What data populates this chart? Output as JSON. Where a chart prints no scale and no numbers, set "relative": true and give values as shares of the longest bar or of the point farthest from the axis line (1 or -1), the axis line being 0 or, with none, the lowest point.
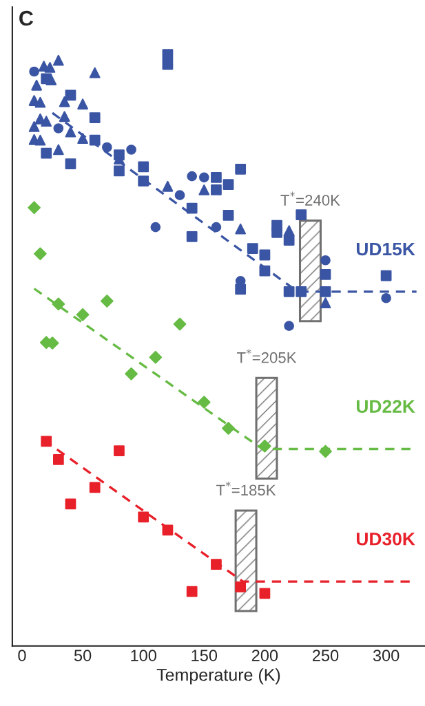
{
  "chart_data": {
    "type": "scatter",
    "relative": true,
    "xlabel": "Temperature (K)",
    "annotations": [
      "C"
    ],
    "xlim": [
      -8,
      332
    ],
    "xticks": [
      0,
      50,
      100,
      150,
      200,
      250,
      300
    ],
    "tick_labels": "x",
    "series": [
      {
        "type": "line",
        "name": "UD15K",
        "color": "#3a55a4",
        "line_style": "dashed",
        "x": [
          25,
          227,
          325
        ],
        "values": [
          0.901,
          0.599,
          0.599
        ]
      },
      {
        "color": "#3a55a4",
        "marker": "circle",
        "x": [
          10,
          30,
          70,
          90,
          110,
          130,
          140,
          150,
          160,
          180,
          220,
          250,
          300
        ],
        "values": [
          0.971,
          0.875,
          0.843,
          0.839,
          0.708,
          0.762,
          0.794,
          0.792,
          0.708,
          0.617,
          0.541,
          0.652,
          0.588
        ]
      },
      {
        "color": "#3a55a4",
        "marker": "triangle",
        "x": [
          10,
          10,
          15,
          15,
          18,
          23,
          30,
          35,
          40,
          50,
          60,
          80,
          120,
          150,
          180,
          220
        ],
        "values": [
          0.922,
          0.878,
          0.919,
          0.855,
          0.98,
          0.978,
          0.99,
          0.92,
          0.869,
          0.916,
          0.969,
          0.823,
          0.777,
          0.771,
          0.705,
          0.702
        ]
      },
      {
        "color": "#3a55a4",
        "marker": "triangle",
        "x": [
          10,
          12,
          15,
          20,
          24,
          30,
          35,
          50,
          250
        ],
        "values": [
          0.856,
          0.948,
          0.891,
          0.887,
          0.957,
          0.839,
          0.895,
          0.858,
          0.58
        ]
      },
      {
        "color": "#3a55a4",
        "marker": "square",
        "x": [
          20,
          40,
          60,
          80,
          100,
          120,
          140,
          160,
          170,
          180,
          190,
          200,
          210,
          220,
          230,
          250
        ],
        "values": [
          0.833,
          0.931,
          0.893,
          0.83,
          0.786,
          1.0,
          0.74,
          0.792,
          0.78,
          0.806,
          0.672,
          0.661,
          0.699,
          0.686,
          0.729,
          0.628
        ]
      },
      {
        "color": "#3a55a4",
        "marker": "square",
        "x": [
          20,
          40,
          60,
          80,
          100,
          120,
          140,
          160,
          170,
          180,
          200,
          210,
          220,
          230,
          250,
          300
        ],
        "values": [
          0.959,
          0.815,
          0.855,
          0.803,
          0.81,
          0.983,
          0.692,
          0.771,
          0.728,
          0.603,
          0.634,
          0.711,
          0.599,
          0.599,
          0.599,
          0.626
        ]
      },
      {
        "type": "line",
        "name": "UD22K",
        "color": "#66bb44",
        "line_style": "dashed",
        "x": [
          10,
          198,
          320
        ],
        "values": [
          0.604,
          0.333,
          0.333
        ]
      },
      {
        "color": "#66bb44",
        "marker": "diamond",
        "x": [
          10,
          15,
          20,
          25,
          30,
          50,
          70,
          90,
          110,
          130,
          150,
          170,
          200,
          250
        ],
        "values": [
          0.741,
          0.663,
          0.513,
          0.512,
          0.578,
          0.56,
          0.583,
          0.46,
          0.488,
          0.544,
          0.412,
          0.368,
          0.338,
          0.329
        ]
      },
      {
        "type": "line",
        "name": "UD30K",
        "color": "#e8202a",
        "line_style": "dashed",
        "x": [
          18,
          182,
          320
        ],
        "values": [
          0.348,
          0.109,
          0.109
        ]
      },
      {
        "color": "#e8202a",
        "marker": "square",
        "x": [
          20,
          30,
          40,
          60,
          80,
          100,
          120,
          140,
          160,
          180,
          200
        ],
        "values": [
          0.346,
          0.315,
          0.24,
          0.268,
          0.33,
          0.218,
          0.196,
          0.092,
          0.138,
          0.1,
          0.089
        ]
      }
    ],
    "bands": [
      {
        "axis": "x",
        "from": 229,
        "to": 246,
        "label": "T$^{*}$=240K",
        "color": "#707070"
      },
      {
        "axis": "x",
        "from": 193,
        "to": 210,
        "label": "T$^{*}$=205K",
        "color": "#707070"
      },
      {
        "axis": "x",
        "from": 176,
        "to": 193,
        "label": "T$^{*}$=185K",
        "color": "#707070"
      }
    ]
  }
}
